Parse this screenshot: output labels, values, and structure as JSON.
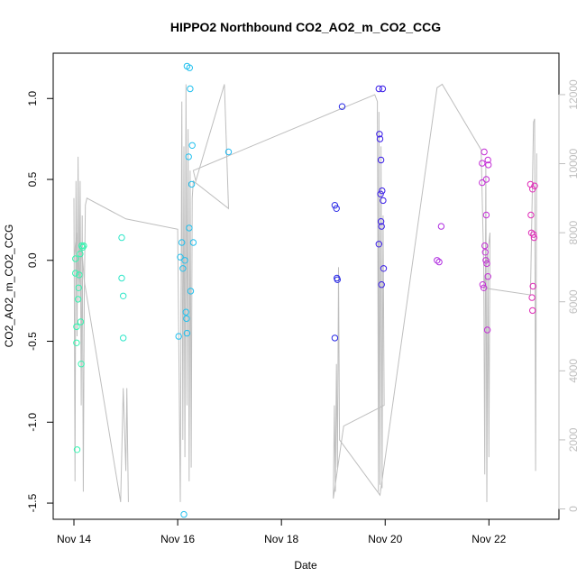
{
  "chart_data": {
    "type": "scatter",
    "title": "HIPPO2 Northbound CO2_AO2_m_CO2_CCG",
    "xlabel": "Date",
    "ylabel": "CO2_AO2_m_CO2_CCG",
    "x_ticks": [
      "Nov 14",
      "Nov 16",
      "Nov 18",
      "Nov 20",
      "Nov 22"
    ],
    "x_tick_days": [
      14,
      16,
      18,
      20,
      22
    ],
    "xlim": [
      13.6,
      23.35
    ],
    "y_ticks": [
      "-1.5",
      "-1.0",
      "-0.5",
      "0.0",
      "0.5",
      "1.0"
    ],
    "y_tick_values": [
      -1.5,
      -1.0,
      -0.5,
      0.0,
      0.5,
      1.0
    ],
    "ylim": [
      -1.6,
      1.28
    ],
    "y2_ticks": [
      "0",
      "2000",
      "4000",
      "6000",
      "8000",
      "10000",
      "12000"
    ],
    "y2_tick_values": [
      0,
      2000,
      4000,
      6000,
      8000,
      10000,
      12000
    ],
    "y2lim": [
      -300,
      13200
    ],
    "grid": false,
    "legend": "none",
    "points": [
      {
        "x": 14.03,
        "y": 0.01,
        "color": "#33f5b0"
      },
      {
        "x": 14.03,
        "y": -0.08,
        "color": "#33f5b0"
      },
      {
        "x": 14.05,
        "y": -0.41,
        "color": "#33f5b0"
      },
      {
        "x": 14.05,
        "y": -0.51,
        "color": "#33f5b0"
      },
      {
        "x": 14.06,
        "y": -1.17,
        "color": "#33f5b0"
      },
      {
        "x": 14.08,
        "y": -0.24,
        "color": "#33f5b0"
      },
      {
        "x": 14.09,
        "y": -0.17,
        "color": "#33f5b0"
      },
      {
        "x": 14.1,
        "y": -0.09,
        "color": "#33f5b0"
      },
      {
        "x": 14.12,
        "y": 0.04,
        "color": "#33f5b0"
      },
      {
        "x": 14.13,
        "y": -0.38,
        "color": "#33f5b0"
      },
      {
        "x": 14.14,
        "y": -0.64,
        "color": "#33f5b0"
      },
      {
        "x": 14.15,
        "y": 0.09,
        "color": "#33f5b0"
      },
      {
        "x": 14.17,
        "y": 0.08,
        "color": "#33f5b0"
      },
      {
        "x": 14.19,
        "y": 0.09,
        "color": "#33f5b0"
      },
      {
        "x": 14.92,
        "y": 0.14,
        "color": "#2ee6c8"
      },
      {
        "x": 14.92,
        "y": -0.11,
        "color": "#2ee6c8"
      },
      {
        "x": 14.95,
        "y": -0.22,
        "color": "#2ee6c8"
      },
      {
        "x": 14.95,
        "y": -0.48,
        "color": "#2ee6c8"
      },
      {
        "x": 16.02,
        "y": -0.47,
        "color": "#22c0ee"
      },
      {
        "x": 16.05,
        "y": 0.02,
        "color": "#22c0ee"
      },
      {
        "x": 16.08,
        "y": 0.11,
        "color": "#22c0ee"
      },
      {
        "x": 16.1,
        "y": -0.05,
        "color": "#22c0ee"
      },
      {
        "x": 16.12,
        "y": -1.57,
        "color": "#22c0ee"
      },
      {
        "x": 16.14,
        "y": 0.0,
        "color": "#22c0ee"
      },
      {
        "x": 16.16,
        "y": -0.32,
        "color": "#22c0ee"
      },
      {
        "x": 16.17,
        "y": -0.36,
        "color": "#22c0ee"
      },
      {
        "x": 16.18,
        "y": -0.45,
        "color": "#22c0ee"
      },
      {
        "x": 16.18,
        "y": 1.2,
        "color": "#22c0ee"
      },
      {
        "x": 16.21,
        "y": 0.64,
        "color": "#22c0ee"
      },
      {
        "x": 16.22,
        "y": 0.2,
        "color": "#22c0ee"
      },
      {
        "x": 16.23,
        "y": 1.19,
        "color": "#22c0ee"
      },
      {
        "x": 16.24,
        "y": 1.06,
        "color": "#22c0ee"
      },
      {
        "x": 16.25,
        "y": -0.19,
        "color": "#22c0ee"
      },
      {
        "x": 16.27,
        "y": 0.47,
        "color": "#22c0ee"
      },
      {
        "x": 16.28,
        "y": 0.71,
        "color": "#22c0ee"
      },
      {
        "x": 16.3,
        "y": 0.11,
        "color": "#22c0ee"
      },
      {
        "x": 16.98,
        "y": 0.67,
        "color": "#20b8f0"
      },
      {
        "x": 19.03,
        "y": -0.48,
        "color": "#2a2ae6"
      },
      {
        "x": 19.03,
        "y": 0.34,
        "color": "#2a2ae6"
      },
      {
        "x": 19.06,
        "y": 0.32,
        "color": "#2a2ae6"
      },
      {
        "x": 19.07,
        "y": -0.11,
        "color": "#2a2ae6"
      },
      {
        "x": 19.08,
        "y": -0.12,
        "color": "#2a2ae6"
      },
      {
        "x": 19.17,
        "y": 0.95,
        "color": "#2a2ae6"
      },
      {
        "x": 19.88,
        "y": 0.1,
        "color": "#3a1ee8"
      },
      {
        "x": 19.88,
        "y": 1.06,
        "color": "#3a1ee8"
      },
      {
        "x": 19.89,
        "y": 0.78,
        "color": "#3a1ee8"
      },
      {
        "x": 19.9,
        "y": 0.75,
        "color": "#3a1ee8"
      },
      {
        "x": 19.91,
        "y": 0.41,
        "color": "#3a1ee8"
      },
      {
        "x": 19.92,
        "y": 0.62,
        "color": "#3a1ee8"
      },
      {
        "x": 19.92,
        "y": 0.24,
        "color": "#3a1ee8"
      },
      {
        "x": 19.93,
        "y": 0.21,
        "color": "#3a1ee8"
      },
      {
        "x": 19.93,
        "y": -0.15,
        "color": "#3a1ee8"
      },
      {
        "x": 19.94,
        "y": 0.43,
        "color": "#3a1ee8"
      },
      {
        "x": 19.95,
        "y": 1.06,
        "color": "#3a1ee8"
      },
      {
        "x": 19.96,
        "y": 0.37,
        "color": "#3a1ee8"
      },
      {
        "x": 19.97,
        "y": -0.05,
        "color": "#3a1ee8"
      },
      {
        "x": 21.0,
        "y": 0.0,
        "color": "#b02de0"
      },
      {
        "x": 21.04,
        "y": -0.01,
        "color": "#b02de0"
      },
      {
        "x": 21.08,
        "y": 0.21,
        "color": "#b02de0"
      },
      {
        "x": 21.87,
        "y": 0.6,
        "color": "#c42fd6"
      },
      {
        "x": 21.87,
        "y": 0.48,
        "color": "#c42fd6"
      },
      {
        "x": 21.88,
        "y": -0.15,
        "color": "#c42fd6"
      },
      {
        "x": 21.9,
        "y": -0.17,
        "color": "#c42fd6"
      },
      {
        "x": 21.91,
        "y": 0.67,
        "color": "#c42fd6"
      },
      {
        "x": 21.92,
        "y": 0.09,
        "color": "#c42fd6"
      },
      {
        "x": 21.93,
        "y": 0.05,
        "color": "#c42fd6"
      },
      {
        "x": 21.94,
        "y": 0.0,
        "color": "#c42fd6"
      },
      {
        "x": 21.95,
        "y": 0.28,
        "color": "#c42fd6"
      },
      {
        "x": 21.95,
        "y": 0.5,
        "color": "#c42fd6"
      },
      {
        "x": 21.96,
        "y": -0.02,
        "color": "#c42fd6"
      },
      {
        "x": 21.97,
        "y": -0.43,
        "color": "#c42fd6"
      },
      {
        "x": 21.98,
        "y": -0.1,
        "color": "#c42fd6"
      },
      {
        "x": 21.98,
        "y": 0.62,
        "color": "#c42fd6"
      },
      {
        "x": 21.99,
        "y": 0.59,
        "color": "#c42fd6"
      },
      {
        "x": 22.8,
        "y": 0.47,
        "color": "#e02cb8"
      },
      {
        "x": 22.81,
        "y": 0.28,
        "color": "#e02cb8"
      },
      {
        "x": 22.82,
        "y": 0.17,
        "color": "#e02cb8"
      },
      {
        "x": 22.83,
        "y": -0.23,
        "color": "#e02cb8"
      },
      {
        "x": 22.84,
        "y": -0.31,
        "color": "#e02cb8"
      },
      {
        "x": 22.84,
        "y": 0.44,
        "color": "#e02cb8"
      },
      {
        "x": 22.85,
        "y": -0.16,
        "color": "#e02cb8"
      },
      {
        "x": 22.86,
        "y": 0.16,
        "color": "#e02cb8"
      },
      {
        "x": 22.87,
        "y": 0.14,
        "color": "#e02cb8"
      },
      {
        "x": 22.88,
        "y": 0.46,
        "color": "#e02cb8"
      }
    ],
    "line_color": "#bebebe",
    "line_y2": [
      [
        14.0,
        9000
      ],
      [
        14.02,
        800
      ],
      [
        14.04,
        9500
      ],
      [
        14.06,
        5000
      ],
      [
        14.08,
        10200
      ],
      [
        14.1,
        6000
      ],
      [
        14.12,
        9500
      ],
      [
        14.14,
        3000
      ],
      [
        14.16,
        8500
      ],
      [
        14.18,
        500
      ],
      [
        14.2,
        6200
      ],
      [
        14.22,
        8800
      ],
      [
        14.25,
        9000
      ],
      [
        15.0,
        8400
      ],
      [
        16.0,
        8100
      ],
      [
        16.05,
        200
      ],
      [
        16.08,
        11800
      ],
      [
        16.1,
        2000
      ],
      [
        16.12,
        10500
      ],
      [
        16.14,
        1500
      ],
      [
        16.16,
        12300
      ],
      [
        16.18,
        3000
      ],
      [
        16.2,
        11000
      ],
      [
        16.22,
        800
      ],
      [
        16.24,
        9800
      ],
      [
        16.26,
        1200
      ],
      [
        16.28,
        9000
      ],
      [
        16.3,
        9500
      ],
      [
        16.98,
        8700
      ],
      [
        16.9,
        12300
      ],
      [
        16.35,
        9500
      ],
      [
        16.3,
        9800
      ],
      [
        19.8,
        12000
      ],
      [
        19.85,
        11800
      ],
      [
        19.87,
        500
      ],
      [
        19.88,
        11500
      ],
      [
        19.9,
        700
      ],
      [
        19.92,
        10500
      ],
      [
        19.94,
        600
      ],
      [
        19.96,
        8500
      ],
      [
        19.98,
        3000
      ],
      [
        19.2,
        2400
      ],
      [
        19.0,
        300
      ],
      [
        19.02,
        3000
      ],
      [
        19.04,
        500
      ],
      [
        19.06,
        4200
      ],
      [
        19.08,
        1200
      ],
      [
        19.1,
        7000
      ],
      [
        19.12,
        2000
      ],
      [
        19.9,
        400
      ],
      [
        21.0,
        12200
      ],
      [
        21.1,
        12300
      ],
      [
        21.85,
        10400
      ],
      [
        21.9,
        7000
      ],
      [
        21.92,
        1000
      ],
      [
        21.94,
        10000
      ],
      [
        21.96,
        200
      ],
      [
        21.98,
        7500
      ],
      [
        22.0,
        1500
      ],
      [
        22.02,
        8000
      ],
      [
        21.9,
        6400
      ],
      [
        22.8,
        6200
      ],
      [
        22.86,
        11200
      ],
      [
        22.88,
        11300
      ],
      [
        22.9,
        1100
      ],
      [
        22.92,
        10300
      ]
    ],
    "line_y2_b": [
      [
        14.0,
        7200
      ],
      [
        14.05,
        8000
      ],
      [
        14.1,
        6400
      ],
      [
        14.15,
        7600
      ],
      [
        14.2,
        6600
      ],
      [
        14.9,
        200
      ],
      [
        14.95,
        3500
      ],
      [
        15.0,
        1100
      ],
      [
        15.02,
        3500
      ],
      [
        15.05,
        200
      ]
    ]
  }
}
